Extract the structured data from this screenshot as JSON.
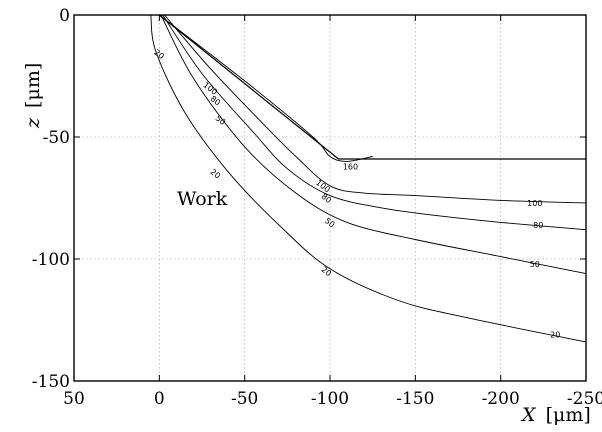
{
  "chart_data": {
    "type": "line",
    "x_axis": {
      "label_main": "X",
      "label_unit": "[μm]",
      "range": [
        50,
        -250
      ],
      "ticks": [
        50,
        0,
        -50,
        -100,
        -150,
        -200,
        -250
      ],
      "tick_labels": [
        "50",
        "0",
        "-50",
        "-100",
        "-150",
        "-200",
        "-250"
      ]
    },
    "y_axis": {
      "label_main": "z",
      "label_unit": "[μm]",
      "range": [
        -150,
        0
      ],
      "ticks": [
        0,
        -50,
        -100,
        -150
      ],
      "tick_labels": [
        "0",
        "-50",
        "-100",
        "-150"
      ]
    },
    "grid": true,
    "annotations": [
      {
        "text": "Work",
        "x": 30,
        "y": -74
      }
    ],
    "tool_edge": [
      [
        0,
        0
      ],
      [
        -105,
        -59
      ],
      [
        -250,
        -59
      ]
    ],
    "series": [
      {
        "level": "160",
        "points": [
          [
            0,
            0
          ],
          [
            -50,
            -27
          ],
          [
            -90,
            -50
          ],
          [
            -100,
            -58
          ],
          [
            -110,
            -60
          ],
          [
            -125,
            -58
          ]
        ],
        "label_at": [
          -112,
          -62
        ]
      },
      {
        "level": "100",
        "points": [
          [
            -3,
            0
          ],
          [
            -30,
            -22
          ],
          [
            -60,
            -44
          ],
          [
            -80,
            -58
          ],
          [
            -100,
            -70
          ],
          [
            -120,
            -73
          ],
          [
            -150,
            -74
          ],
          [
            -200,
            -76
          ],
          [
            -250,
            -77
          ]
        ],
        "label_at": [
          -220,
          -77
        ]
      },
      {
        "level": "80",
        "points": [
          [
            -2,
            0
          ],
          [
            -25,
            -24
          ],
          [
            -55,
            -48
          ],
          [
            -75,
            -63
          ],
          [
            -100,
            -74
          ],
          [
            -130,
            -79
          ],
          [
            -160,
            -82
          ],
          [
            -200,
            -85
          ],
          [
            -250,
            -88
          ]
        ],
        "label_at": [
          -222,
          -86
        ]
      },
      {
        "level": "50",
        "points": [
          [
            -1,
            0
          ],
          [
            -20,
            -26
          ],
          [
            -50,
            -54
          ],
          [
            -80,
            -73
          ],
          [
            -110,
            -85
          ],
          [
            -150,
            -92
          ],
          [
            -200,
            -99
          ],
          [
            -250,
            -106
          ]
        ],
        "label_at": [
          -220,
          -102
        ]
      },
      {
        "level": "20",
        "points": [
          [
            5,
            0
          ],
          [
            2,
            -15
          ],
          [
            -15,
            -40
          ],
          [
            -40,
            -64
          ],
          [
            -70,
            -86
          ],
          [
            -100,
            -104
          ],
          [
            -140,
            -117
          ],
          [
            -180,
            -124
          ],
          [
            -250,
            -134
          ]
        ],
        "label_at": [
          -232,
          -131
        ]
      }
    ],
    "inner_labels": [
      {
        "text": "100",
        "x": -30,
        "y": -30
      },
      {
        "text": "80",
        "x": -33,
        "y": -35
      },
      {
        "text": "50",
        "x": -36,
        "y": -43
      },
      {
        "text": "20",
        "x": 0,
        "y": -16
      },
      {
        "text": "20",
        "x": -33,
        "y": -65
      },
      {
        "text": "20",
        "x": -98,
        "y": -105
      },
      {
        "text": "50",
        "x": -100,
        "y": -85
      },
      {
        "text": "80",
        "x": -98,
        "y": -75
      },
      {
        "text": "100",
        "x": -96,
        "y": -70
      }
    ]
  }
}
